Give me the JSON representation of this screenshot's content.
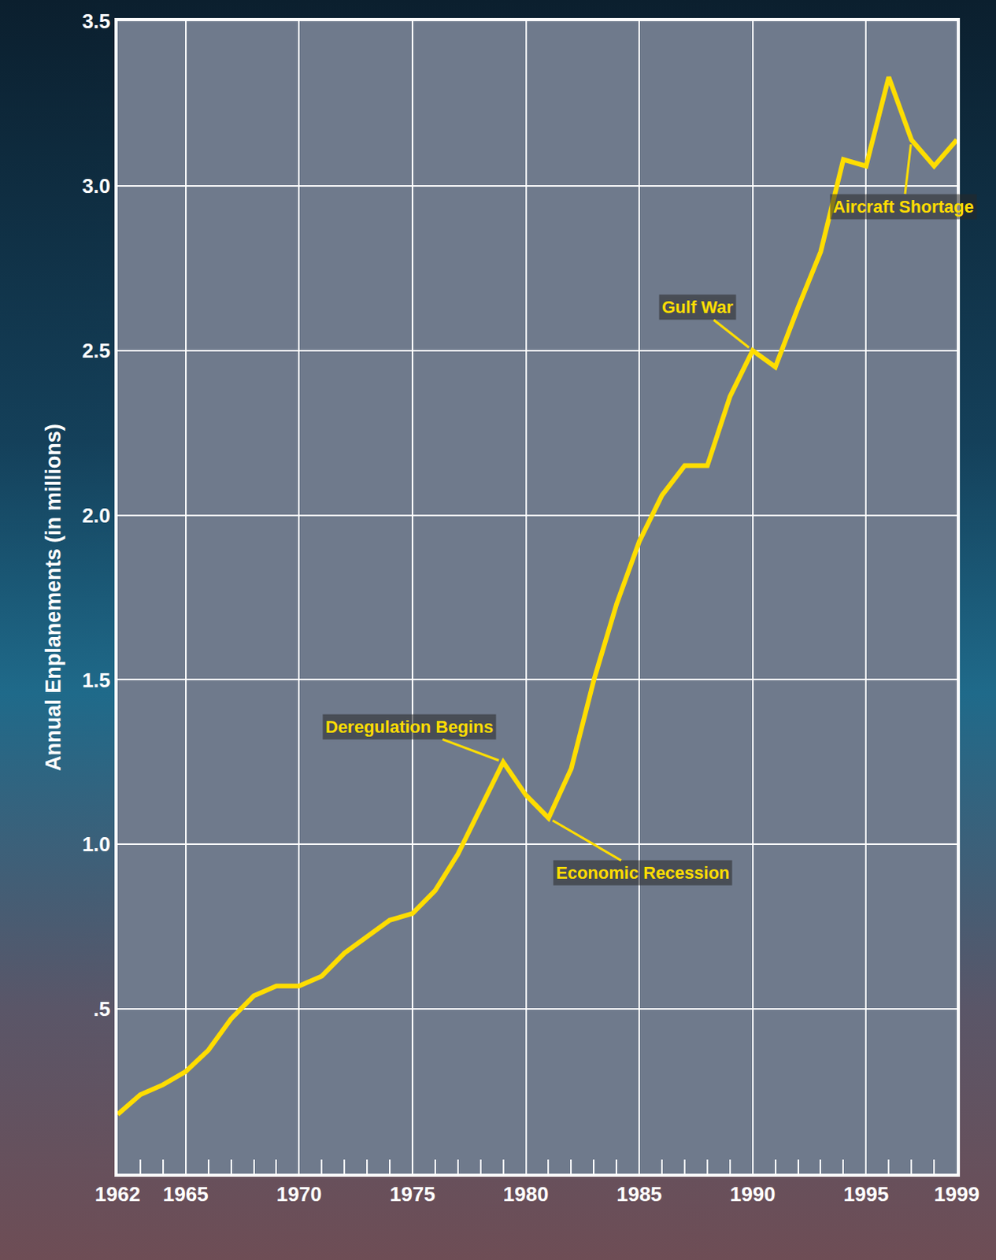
{
  "chart_data": {
    "type": "line",
    "y_label": "Annual Enplanements (in millions)",
    "x": [
      1962,
      1963,
      1964,
      1965,
      1966,
      1967,
      1968,
      1969,
      1970,
      1971,
      1972,
      1973,
      1974,
      1975,
      1976,
      1977,
      1978,
      1979,
      1980,
      1981,
      1982,
      1983,
      1984,
      1985,
      1986,
      1987,
      1988,
      1989,
      1990,
      1991,
      1992,
      1993,
      1994,
      1995,
      1996,
      1997,
      1998,
      1999
    ],
    "values": [
      0.18,
      0.24,
      0.27,
      0.31,
      0.375,
      0.47,
      0.54,
      0.57,
      0.57,
      0.6,
      0.67,
      0.72,
      0.77,
      0.79,
      0.86,
      0.97,
      1.11,
      1.25,
      1.15,
      1.08,
      1.23,
      1.5,
      1.73,
      1.92,
      2.06,
      2.15,
      2.15,
      2.36,
      2.5,
      2.45,
      2.63,
      2.8,
      3.08,
      3.06,
      3.33,
      3.14,
      3.06,
      3.14
    ],
    "color": "#ffdd00",
    "xlim": [
      1962,
      1999
    ],
    "xticks": [
      1962,
      1965,
      1970,
      1975,
      1980,
      1985,
      1990,
      1995,
      1999
    ],
    "ylim": [
      0,
      3.5
    ],
    "yticks": [
      {
        "value": 0.5,
        "label": ".5"
      },
      {
        "value": 1,
        "label": "1.0"
      },
      {
        "value": 1.5,
        "label": "1.5"
      },
      {
        "value": 2,
        "label": "2.0"
      },
      {
        "value": 2.5,
        "label": "2.5"
      },
      {
        "value": 3,
        "label": "3.0"
      },
      {
        "value": 3.5,
        "label": "3.5"
      }
    ],
    "grid": true,
    "annotations": [
      {
        "text": "Deregulation Begins",
        "x": 1979,
        "y": 1.25
      },
      {
        "text": "Economic Recession",
        "x": 1981,
        "y": 1.08
      },
      {
        "text": "Gulf War",
        "x": 1990,
        "y": 2.5
      },
      {
        "text": "Aircraft Shortage",
        "x": 1997,
        "y": 3.14
      }
    ]
  }
}
